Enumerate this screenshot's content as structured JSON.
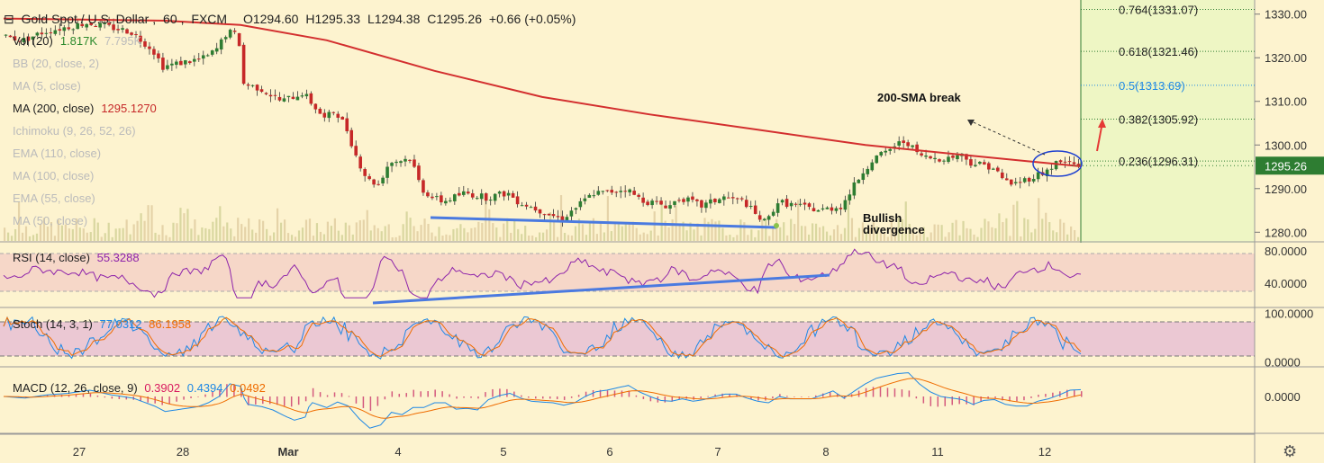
{
  "header": {
    "collapse_icon": "minus-square-icon",
    "symbol": "Gold Spot / U.S. Dollar",
    "interval": "60",
    "source": "FXCM",
    "open_label": "O",
    "open": "1294.60",
    "high_label": "H",
    "high": "1295.33",
    "low_label": "L",
    "low": "1294.38",
    "close_label": "C",
    "close": "1295.26",
    "change": "+0.66 (+0.05%)"
  },
  "indicators": [
    {
      "label": "Vol (20)",
      "value": "1.817K",
      "value2": "7.795K",
      "active": true,
      "color": "#2e8b2e"
    },
    {
      "label": "BB (20, close, 2)",
      "active": false
    },
    {
      "label": "MA (5, close)",
      "active": false
    },
    {
      "label": "MA (200, close)",
      "value": "1295.1270",
      "active": true,
      "color": "#c62828"
    },
    {
      "label": "Ichimoku (9, 26, 52, 26)",
      "active": false
    },
    {
      "label": "EMA (110, close)",
      "active": false
    },
    {
      "label": "MA (100, close)",
      "active": false
    },
    {
      "label": "EMA (55, close)",
      "active": false
    },
    {
      "label": "MA (50, close)",
      "active": false
    }
  ],
  "chart_data": {
    "type": "candlestick",
    "x_ticks": [
      "27",
      "28",
      "Mar",
      "4",
      "5",
      "6",
      "7",
      "8",
      "11",
      "12"
    ],
    "price_ticks": [
      1330,
      1320,
      1310,
      1300,
      1290,
      1280
    ],
    "price_tick_labels": [
      "1330.00",
      "1320.00",
      "1310.00",
      "1300.00",
      "1290.00",
      "1280.00"
    ],
    "ylim": [
      1278,
      1332
    ],
    "last_price": "1295.26",
    "fib_levels": [
      {
        "ratio": "0.764",
        "price": "1331.07",
        "value": 1331.07
      },
      {
        "ratio": "0.618",
        "price": "1321.46",
        "value": 1321.46
      },
      {
        "ratio": "0.5",
        "price": "1313.69",
        "value": 1313.69,
        "highlight": true
      },
      {
        "ratio": "0.382",
        "price": "1305.92",
        "value": 1305.92
      },
      {
        "ratio": "0.236",
        "price": "1296.31",
        "value": 1296.31
      }
    ],
    "sma200_path": [
      [
        0,
        1329
      ],
      [
        0.15,
        1328.5
      ],
      [
        0.22,
        1327.5
      ],
      [
        0.3,
        1324
      ],
      [
        0.4,
        1317
      ],
      [
        0.5,
        1311
      ],
      [
        0.6,
        1307
      ],
      [
        0.7,
        1303.5
      ],
      [
        0.8,
        1300
      ],
      [
        0.9,
        1297.5
      ],
      [
        1.0,
        1295.1
      ]
    ],
    "price_path": [
      [
        0.0,
        1325
      ],
      [
        0.02,
        1324
      ],
      [
        0.04,
        1326
      ],
      [
        0.06,
        1327
      ],
      [
        0.08,
        1328
      ],
      [
        0.1,
        1327
      ],
      [
        0.12,
        1326
      ],
      [
        0.14,
        1322
      ],
      [
        0.15,
        1318
      ],
      [
        0.17,
        1319
      ],
      [
        0.19,
        1320
      ],
      [
        0.2,
        1322
      ],
      [
        0.21,
        1326
      ],
      [
        0.22,
        1325
      ],
      [
        0.225,
        1314
      ],
      [
        0.24,
        1313
      ],
      [
        0.26,
        1310
      ],
      [
        0.28,
        1312
      ],
      [
        0.3,
        1306
      ],
      [
        0.31,
        1308
      ],
      [
        0.32,
        1304
      ],
      [
        0.33,
        1297
      ],
      [
        0.34,
        1292
      ],
      [
        0.35,
        1291
      ],
      [
        0.36,
        1296
      ],
      [
        0.38,
        1297
      ],
      [
        0.39,
        1290
      ],
      [
        0.4,
        1288
      ],
      [
        0.41,
        1287
      ],
      [
        0.43,
        1289
      ],
      [
        0.45,
        1288
      ],
      [
        0.47,
        1289
      ],
      [
        0.48,
        1287
      ],
      [
        0.5,
        1285
      ],
      [
        0.52,
        1283
      ],
      [
        0.54,
        1287
      ],
      [
        0.55,
        1289
      ],
      [
        0.56,
        1289
      ],
      [
        0.58,
        1290
      ],
      [
        0.59,
        1288
      ],
      [
        0.6,
        1287
      ],
      [
        0.62,
        1286
      ],
      [
        0.63,
        1288
      ],
      [
        0.65,
        1286
      ],
      [
        0.67,
        1288
      ],
      [
        0.69,
        1287
      ],
      [
        0.7,
        1284
      ],
      [
        0.71,
        1282
      ],
      [
        0.72,
        1287
      ],
      [
        0.74,
        1286
      ],
      [
        0.76,
        1285
      ],
      [
        0.78,
        1286
      ],
      [
        0.79,
        1290
      ],
      [
        0.8,
        1294
      ],
      [
        0.81,
        1297
      ],
      [
        0.82,
        1298
      ],
      [
        0.83,
        1300
      ],
      [
        0.84,
        1301
      ],
      [
        0.85,
        1298
      ],
      [
        0.86,
        1297
      ],
      [
        0.88,
        1297
      ],
      [
        0.89,
        1298
      ],
      [
        0.9,
        1296
      ],
      [
        0.92,
        1295
      ],
      [
        0.93,
        1292
      ],
      [
        0.94,
        1291
      ],
      [
        0.95,
        1292
      ],
      [
        0.96,
        1293
      ],
      [
        0.97,
        1294
      ],
      [
        0.98,
        1296
      ],
      [
        0.99,
        1296
      ],
      [
        1.0,
        1295.3
      ]
    ],
    "annotations": {
      "sma_break": "200-SMA break",
      "bullish_divergence_1": "Bullish",
      "bullish_divergence_2": "divergence"
    },
    "rsi": {
      "label": "RSI (14, close)",
      "value": "55.3288",
      "ticks": [
        "80.0000",
        "40.0000"
      ],
      "ylim": [
        10,
        90
      ]
    },
    "stoch": {
      "label": "Stoch (14, 3, 1)",
      "k_value": "77.0312",
      "d_value": "86.1958",
      "ticks": [
        "100.0000",
        "0.0000"
      ],
      "ylim": [
        -10,
        110
      ]
    },
    "macd": {
      "label": "MACD (12, 26, close, 9)",
      "hist_value": "0.3902",
      "macd_value": "0.4394",
      "signal_value": "0.0492",
      "ticks": [
        "0.0000"
      ]
    }
  },
  "toolbar": {
    "settings_icon": "gear-icon"
  }
}
